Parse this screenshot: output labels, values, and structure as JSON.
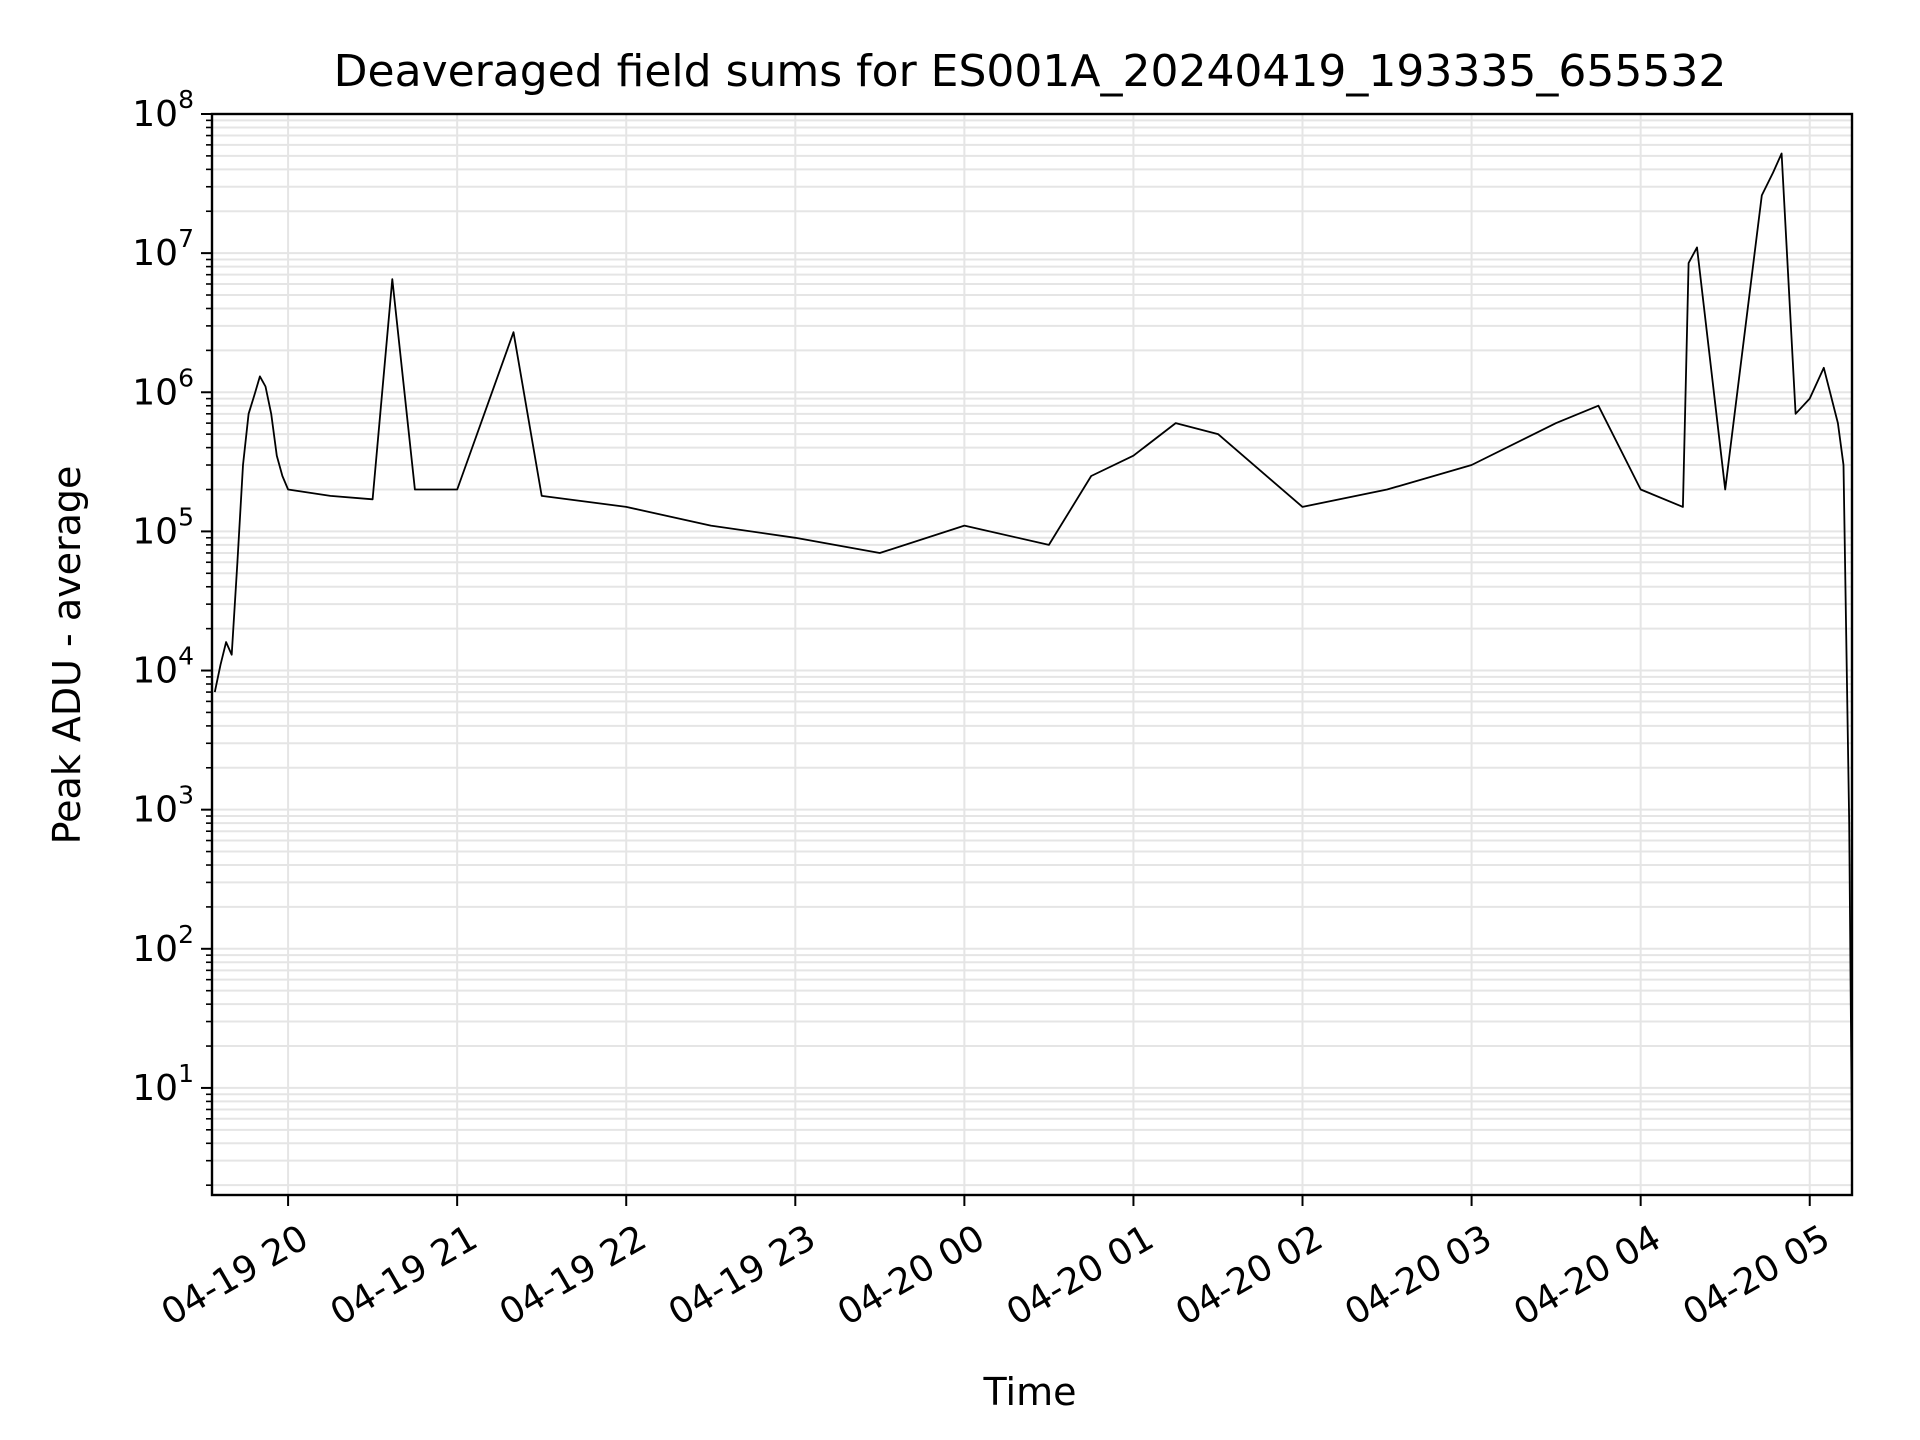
{
  "chart_data": {
    "type": "line",
    "title": "Deaveraged field sums for ES001A_20240419_193335_655532",
    "xlabel": "Time",
    "ylabel": "Peak ADU - average",
    "y_scale": "log",
    "ylim": [
      1.7,
      100000000
    ],
    "xlim": [
      "2024-04-19 19:33",
      "2024-04-20 05:15"
    ],
    "grid": true,
    "line_color": "#000000",
    "grid_color": "#e5e5e5",
    "x_ticks": [
      {
        "t": "2024-04-19 20:00",
        "label": "04-19 20"
      },
      {
        "t": "2024-04-19 21:00",
        "label": "04-19 21"
      },
      {
        "t": "2024-04-19 22:00",
        "label": "04-19 22"
      },
      {
        "t": "2024-04-19 23:00",
        "label": "04-19 23"
      },
      {
        "t": "2024-04-20 00:00",
        "label": "04-20 00"
      },
      {
        "t": "2024-04-20 01:00",
        "label": "04-20 01"
      },
      {
        "t": "2024-04-20 02:00",
        "label": "04-20 02"
      },
      {
        "t": "2024-04-20 03:00",
        "label": "04-20 03"
      },
      {
        "t": "2024-04-20 04:00",
        "label": "04-20 04"
      },
      {
        "t": "2024-04-20 05:00",
        "label": "04-20 05"
      }
    ],
    "y_ticks": [
      {
        "value": 10,
        "base": "10",
        "exp": "1"
      },
      {
        "value": 100,
        "base": "10",
        "exp": "2"
      },
      {
        "value": 1000,
        "base": "10",
        "exp": "3"
      },
      {
        "value": 10000,
        "base": "10",
        "exp": "4"
      },
      {
        "value": 100000,
        "base": "10",
        "exp": "5"
      },
      {
        "value": 1000000,
        "base": "10",
        "exp": "6"
      },
      {
        "value": 10000000,
        "base": "10",
        "exp": "7"
      },
      {
        "value": 100000000,
        "base": "10",
        "exp": "8"
      }
    ],
    "series": [
      {
        "points": [
          [
            "2024-04-19 19:34",
            7000
          ],
          [
            "2024-04-19 19:36",
            11000
          ],
          [
            "2024-04-19 19:38",
            16000
          ],
          [
            "2024-04-19 19:40",
            13000
          ],
          [
            "2024-04-19 19:42",
            60000
          ],
          [
            "2024-04-19 19:44",
            300000
          ],
          [
            "2024-04-19 19:46",
            700000
          ],
          [
            "2024-04-19 19:48",
            950000
          ],
          [
            "2024-04-19 19:50",
            1300000
          ],
          [
            "2024-04-19 19:52",
            1100000
          ],
          [
            "2024-04-19 19:54",
            700000
          ],
          [
            "2024-04-19 19:56",
            350000
          ],
          [
            "2024-04-19 19:58",
            250000
          ],
          [
            "2024-04-19 20:00",
            200000
          ],
          [
            "2024-04-19 20:15",
            180000
          ],
          [
            "2024-04-19 20:30",
            170000
          ],
          [
            "2024-04-19 20:37",
            6500000
          ],
          [
            "2024-04-19 20:45",
            200000
          ],
          [
            "2024-04-19 21:00",
            200000
          ],
          [
            "2024-04-19 21:20",
            2700000
          ],
          [
            "2024-04-19 21:30",
            180000
          ],
          [
            "2024-04-19 22:00",
            150000
          ],
          [
            "2024-04-19 22:30",
            110000
          ],
          [
            "2024-04-19 23:00",
            90000
          ],
          [
            "2024-04-19 23:30",
            70000
          ],
          [
            "2024-04-20 00:00",
            110000
          ],
          [
            "2024-04-20 00:30",
            80000
          ],
          [
            "2024-04-20 00:45",
            250000
          ],
          [
            "2024-04-20 01:00",
            350000
          ],
          [
            "2024-04-20 01:15",
            600000
          ],
          [
            "2024-04-20 01:30",
            500000
          ],
          [
            "2024-04-20 02:00",
            150000
          ],
          [
            "2024-04-20 02:30",
            200000
          ],
          [
            "2024-04-20 03:00",
            300000
          ],
          [
            "2024-04-20 03:30",
            600000
          ],
          [
            "2024-04-20 03:45",
            800000
          ],
          [
            "2024-04-20 04:00",
            200000
          ],
          [
            "2024-04-20 04:15",
            150000
          ],
          [
            "2024-04-20 04:17",
            8500000
          ],
          [
            "2024-04-20 04:20",
            11000000
          ],
          [
            "2024-04-20 04:30",
            200000
          ],
          [
            "2024-04-20 04:43",
            26000000
          ],
          [
            "2024-04-20 04:47",
            38000000
          ],
          [
            "2024-04-20 04:50",
            52000000
          ],
          [
            "2024-04-20 04:55",
            700000
          ],
          [
            "2024-04-20 05:00",
            900000
          ],
          [
            "2024-04-20 05:05",
            1500000
          ],
          [
            "2024-04-20 05:10",
            600000
          ],
          [
            "2024-04-20 05:12",
            300000
          ],
          [
            "2024-04-20 05:14",
            800
          ],
          [
            "2024-04-20 05:15",
            4
          ]
        ]
      }
    ]
  }
}
